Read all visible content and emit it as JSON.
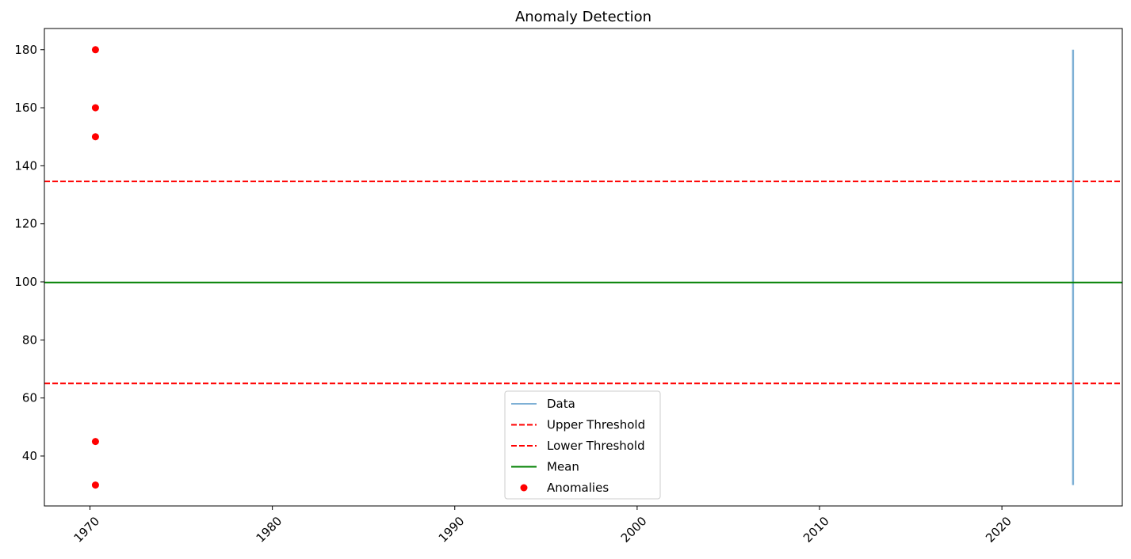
{
  "chart_data": {
    "type": "line",
    "title": "Anomaly Detection",
    "xlabel": "",
    "ylabel": "",
    "x_axis": {
      "type": "year",
      "ticks": [
        1970,
        1980,
        1990,
        2000,
        2010,
        2020
      ],
      "tick_labels": [
        "1970",
        "1980",
        "1990",
        "2000",
        "2010",
        "2020"
      ],
      "range": [
        1967.5,
        2026.6
      ]
    },
    "y_axis": {
      "ticks": [
        40,
        60,
        80,
        100,
        120,
        140,
        160,
        180
      ],
      "tick_labels": [
        "40",
        "60",
        "80",
        "100",
        "120",
        "140",
        "160",
        "180"
      ],
      "range": [
        22.8,
        187.3
      ]
    },
    "grid": false,
    "legend_position": "bottom-center",
    "series": [
      {
        "name": "Data",
        "kind": "line",
        "color": "#7eb0d5",
        "x": [
          2023.9,
          2023.9
        ],
        "y": [
          30,
          180
        ]
      },
      {
        "name": "Upper Threshold",
        "kind": "hline",
        "style": "dashed",
        "color": "#ff0000",
        "y": 134.6
      },
      {
        "name": "Lower Threshold",
        "kind": "hline",
        "style": "dashed",
        "color": "#ff0000",
        "y": 65
      },
      {
        "name": "Mean",
        "kind": "hline",
        "style": "solid",
        "color": "#008000",
        "y": 99.8
      },
      {
        "name": "Anomalies",
        "kind": "scatter",
        "color": "#ff0000",
        "x": [
          1970.3,
          1970.3,
          1970.3,
          1970.3,
          1970.3
        ],
        "y": [
          180,
          160,
          150,
          45,
          30
        ]
      }
    ]
  }
}
